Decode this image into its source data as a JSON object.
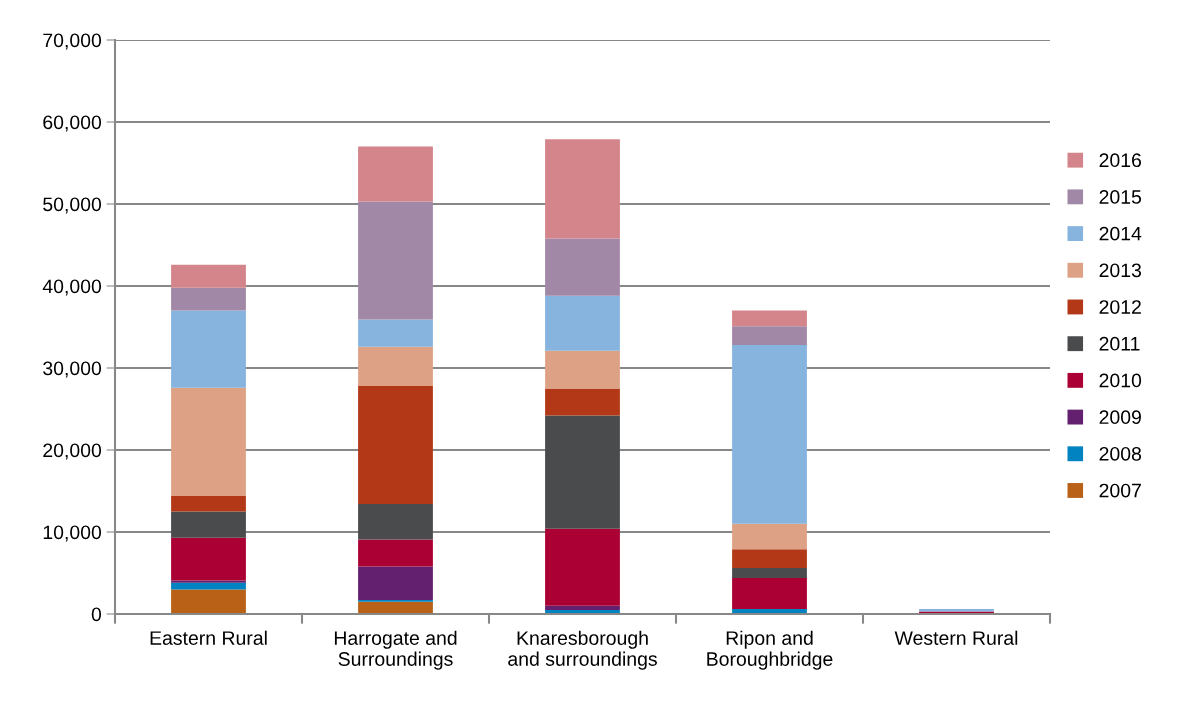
{
  "chart_data": {
    "type": "bar",
    "stacked": true,
    "categories": [
      "Eastern Rural",
      "Harrogate and\nSurroundings",
      "Knaresborough\nand surroundings",
      "Ripon and\nBoroughbridge",
      "Western Rural"
    ],
    "series": [
      {
        "name": "2007",
        "color": "#b86117",
        "values": [
          3000,
          1500,
          0,
          0,
          0
        ]
      },
      {
        "name": "2008",
        "color": "#0083c0",
        "values": [
          800,
          200,
          500,
          600,
          0
        ]
      },
      {
        "name": "2009",
        "color": "#63206e",
        "values": [
          300,
          4100,
          500,
          0,
          0
        ]
      },
      {
        "name": "2010",
        "color": "#ab0033",
        "values": [
          5200,
          3300,
          9400,
          3800,
          300
        ]
      },
      {
        "name": "2011",
        "color": "#4a4b4d",
        "values": [
          3200,
          4300,
          13800,
          1200,
          0
        ]
      },
      {
        "name": "2012",
        "color": "#b23818",
        "values": [
          1900,
          14400,
          3300,
          2300,
          0
        ]
      },
      {
        "name": "2013",
        "color": "#dda285",
        "values": [
          13200,
          4800,
          4600,
          3100,
          0
        ]
      },
      {
        "name": "2014",
        "color": "#86b4df",
        "values": [
          9400,
          3300,
          6700,
          21800,
          300
        ]
      },
      {
        "name": "2015",
        "color": "#a188a7",
        "values": [
          2800,
          14400,
          7000,
          2300,
          0
        ]
      },
      {
        "name": "2016",
        "color": "#d4848b",
        "values": [
          2800,
          6700,
          12100,
          1900,
          0
        ]
      }
    ],
    "ylim": [
      0,
      70000
    ],
    "yticks": [
      0,
      {
        "value": 10000,
        "label": "10,000"
      },
      {
        "value": 20000,
        "label": "20,000"
      },
      {
        "value": 30000,
        "label": "30,000"
      },
      {
        "value": 40000,
        "label": "40,000"
      },
      {
        "value": 50000,
        "label": "50,000"
      },
      {
        "value": 60000,
        "label": "60,000"
      },
      {
        "value": 70000,
        "label": "70,000"
      }
    ],
    "grid": "y",
    "legend": "right"
  }
}
